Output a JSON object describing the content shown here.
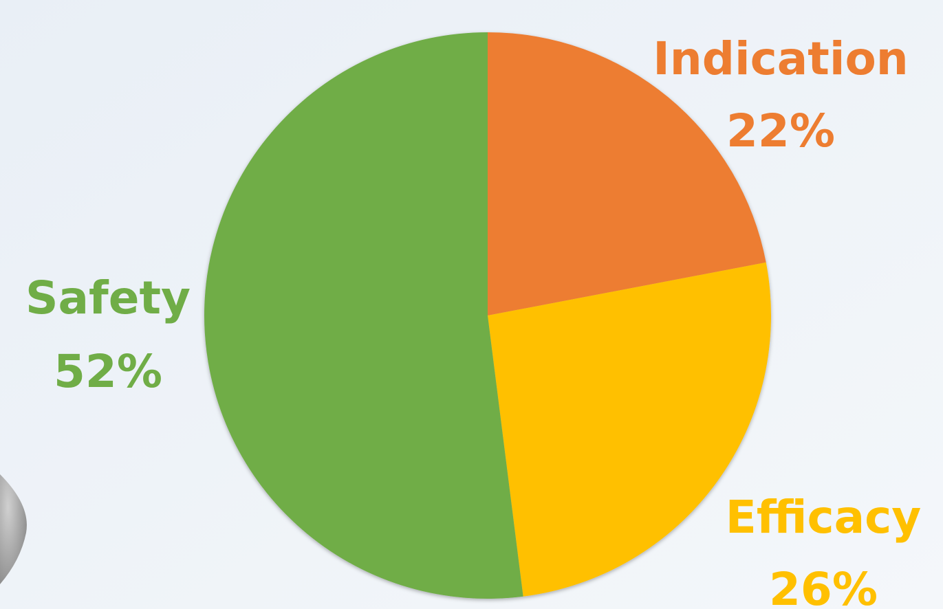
{
  "chart_data": {
    "type": "pie",
    "categories": [
      "Indication",
      "Efficacy",
      "Safety"
    ],
    "values": [
      22,
      26,
      52
    ],
    "value_labels": [
      "22%",
      "26%",
      "52%"
    ],
    "colors": [
      "#ED7D31",
      "#FFC000",
      "#70AD47"
    ]
  }
}
